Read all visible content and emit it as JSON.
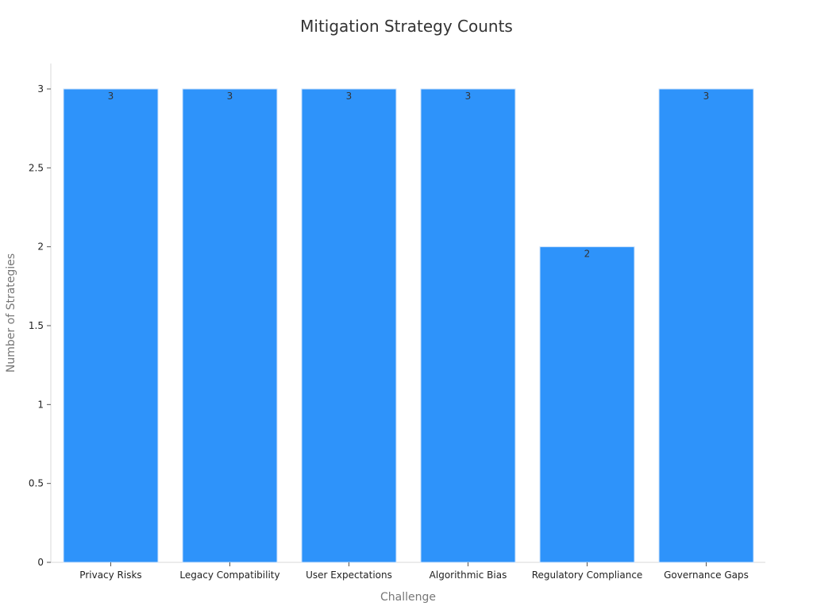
{
  "chart_data": {
    "type": "bar",
    "title": "Mitigation Strategy Counts",
    "xlabel": "Challenge",
    "ylabel": "Number of Strategies",
    "categories": [
      "Privacy Risks",
      "Legacy Compatibility",
      "User Expectations",
      "Algorithmic Bias",
      "Regulatory Compliance",
      "Governance Gaps"
    ],
    "values": [
      3,
      3,
      3,
      3,
      2,
      3
    ],
    "data_labels": [
      "3",
      "3",
      "3",
      "3",
      "2",
      "3"
    ],
    "ylim": [
      0,
      3
    ],
    "yticks": [
      0,
      0.5,
      1,
      1.5,
      2,
      2.5,
      3
    ],
    "ytick_labels": [
      "0",
      "0.5",
      "1",
      "1.5",
      "2",
      "2.5",
      "3"
    ],
    "grid": false,
    "legend": "none",
    "colors": {
      "bar": "#2e93fa"
    }
  }
}
